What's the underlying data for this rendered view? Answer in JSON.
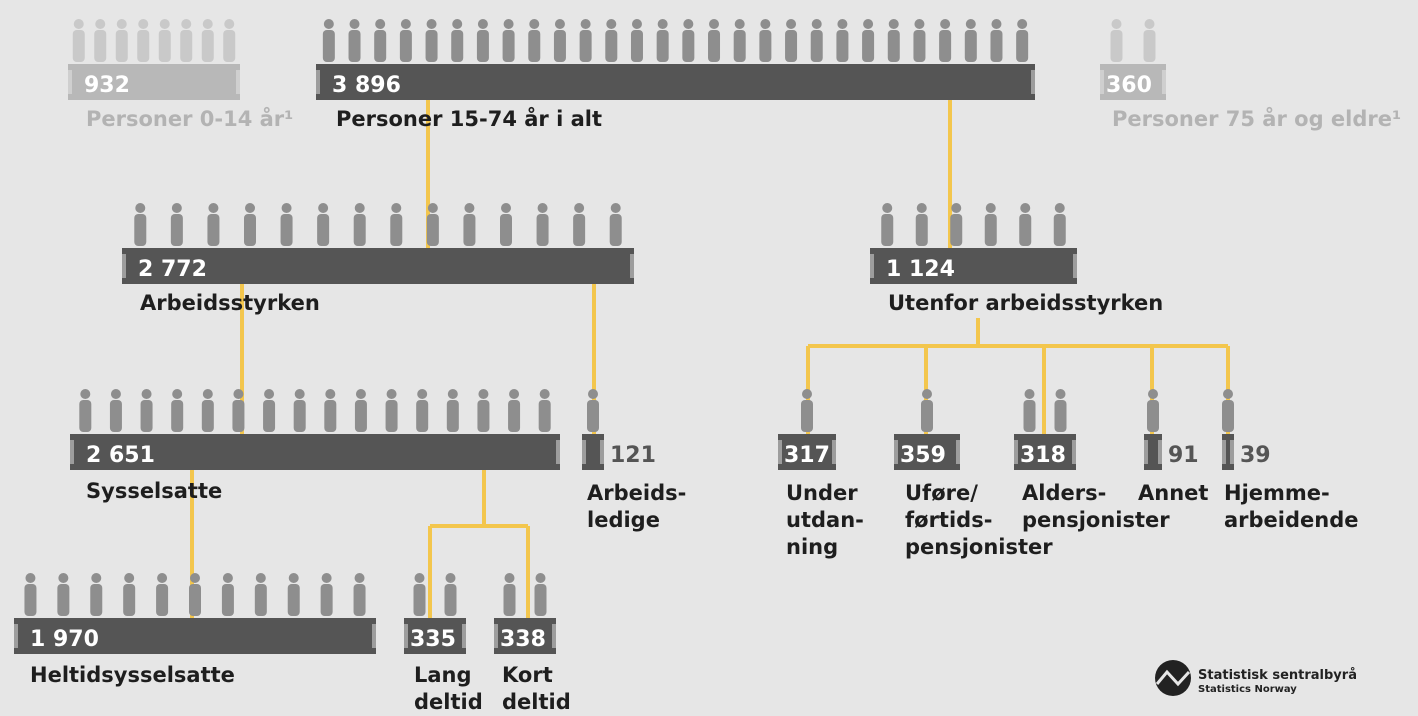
{
  "nodes": [
    {
      "value": "932",
      "label": [
        "Personer 0-14 år¹"
      ]
    },
    {
      "value": "3 896",
      "label": [
        "Personer 15-74 år i alt"
      ]
    },
    {
      "value": "360",
      "label": [
        "Personer 75 år og eldre¹"
      ]
    },
    {
      "value": "2 772",
      "label": [
        "Arbeidsstyrken"
      ]
    },
    {
      "value": "1 124",
      "label": [
        "Utenfor arbeidsstyrken"
      ]
    },
    {
      "value": "2 651",
      "label": [
        "Sysselsatte"
      ]
    },
    {
      "value": "121",
      "label": [
        "Arbeids-",
        "ledige"
      ]
    },
    {
      "value": "317",
      "label": [
        "Under",
        "utdan-",
        "ning"
      ]
    },
    {
      "value": "359",
      "label": [
        "Uføre/",
        "førtids-",
        "pensjonister"
      ]
    },
    {
      "value": "318",
      "label": [
        "Alders-",
        "pensjonister"
      ]
    },
    {
      "value": "91",
      "label": [
        "Annet"
      ]
    },
    {
      "value": "39",
      "label": [
        "Hjemme-",
        "arbeidende"
      ]
    },
    {
      "value": "1 970",
      "label": [
        "Heltidsysselsatte"
      ]
    },
    {
      "value": "335",
      "label": [
        "Lang",
        "deltid"
      ]
    },
    {
      "value": "338",
      "label": [
        "Kort",
        "deltid"
      ]
    }
  ],
  "logo": {
    "name": "Statistisk sentralbyrå",
    "subtitle": "Statistics Norway"
  }
}
